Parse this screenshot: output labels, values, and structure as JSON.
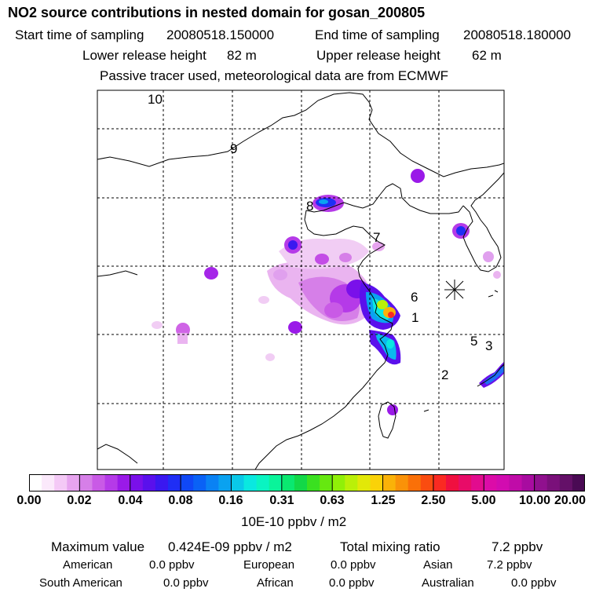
{
  "header": {
    "title": "NO2 source contributions in nested domain for gosan_200805",
    "start_label": "Start time of sampling",
    "start_value": "20080518.150000",
    "end_label": "End time of sampling",
    "end_value": "20080518.180000",
    "lower_label": "Lower release height",
    "lower_value": "82 m",
    "upper_label": "Upper release height",
    "upper_value": "62 m",
    "tracer_note": "Passive tracer used, meteorological data are from ECMWF"
  },
  "map": {
    "trajectory_labels": [
      "10",
      "9",
      "8",
      "7",
      "6",
      "1",
      "5",
      "3",
      "2"
    ],
    "receptor": "gosan"
  },
  "colorbar": {
    "ticks": [
      "0.00",
      "0.02",
      "0.04",
      "0.08",
      "0.16",
      "0.31",
      "0.63",
      "1.25",
      "2.50",
      "5.00",
      "10.00",
      "20.00"
    ],
    "colors": [
      "#ffffff",
      "#fbe9fb",
      "#f4c9f6",
      "#e7a4ef",
      "#d67fe8",
      "#c95ae6",
      "#b53ae8",
      "#9a1ae8",
      "#7a10ea",
      "#5a10ec",
      "#3a18f0",
      "#1f2ef5",
      "#1048f6",
      "#0a62f6",
      "#0a82f4",
      "#0aa2f0",
      "#0ac8e8",
      "#0ae8e0",
      "#0af4c2",
      "#0af49a",
      "#0ae870",
      "#12d848",
      "#3ae020",
      "#66e810",
      "#90f008",
      "#baf008",
      "#e2e808",
      "#fad208",
      "#fab208",
      "#fa9208",
      "#fa7008",
      "#fa4c10",
      "#fa2a22",
      "#f01040",
      "#e80c68",
      "#e20c8e",
      "#dc0ca8",
      "#d20cb0",
      "#c00ca8",
      "#a80ca0",
      "#90108e",
      "#7a107a",
      "#641068",
      "#4a0a54"
    ],
    "units": "10E-10 ppbv / m2"
  },
  "stats": {
    "max_label": "Maximum value",
    "max_value": "0.424E-09 ppbv / m2",
    "total_label": "Total mixing ratio",
    "total_value": "7.2 ppbv",
    "regions": [
      {
        "name": "American",
        "value": "0.0 ppbv"
      },
      {
        "name": "European",
        "value": "0.0 ppbv"
      },
      {
        "name": "Asian",
        "value": "7.2 ppbv"
      },
      {
        "name": "South American",
        "value": "0.0 ppbv"
      },
      {
        "name": "African",
        "value": "0.0 ppbv"
      },
      {
        "name": "Australian",
        "value": "0.0 ppbv"
      }
    ]
  }
}
